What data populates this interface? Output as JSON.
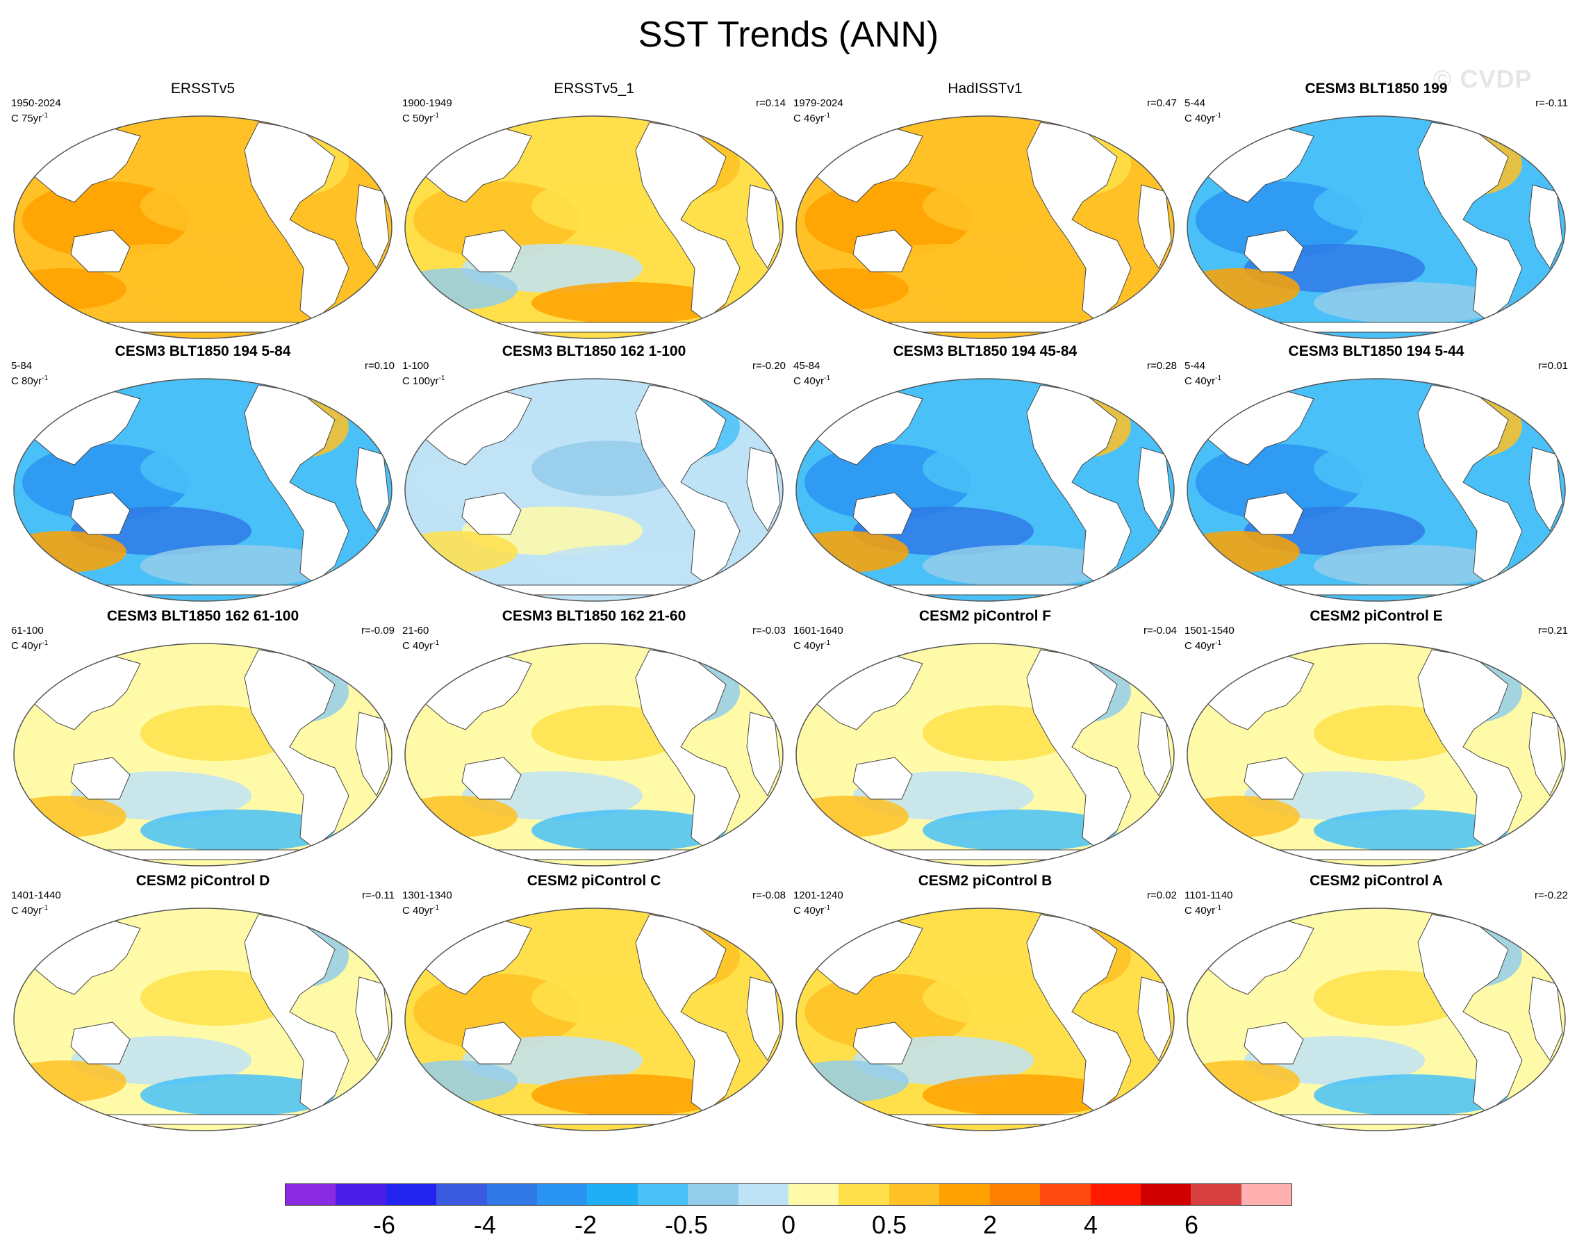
{
  "title": "SST Trends (ANN)",
  "watermark": "© CVDP",
  "panels": [
    {
      "title": "ERSSTv5",
      "period": "1950-2024",
      "units": "C 75yr",
      "r": "",
      "bold": false,
      "scheme": "warm"
    },
    {
      "title": "ERSSTv5_1",
      "period": "1900-1949",
      "units": "C 50yr",
      "r": "r=0.14",
      "bold": false,
      "scheme": "warmmix"
    },
    {
      "title": "HadISSTv1",
      "period": "1979-2024",
      "units": "C 46yr",
      "r": "r=0.47",
      "bold": false,
      "scheme": "warm"
    },
    {
      "title": "CESM3 BLT1850 199",
      "period": "5-44",
      "units": "C 40yr",
      "r": "r=-0.11",
      "bold": true,
      "scheme": "cool"
    },
    {
      "title": "CESM3 BLT1850 194 5-84",
      "period": "5-84",
      "units": "C 80yr",
      "r": "r=0.10",
      "bold": true,
      "scheme": "cool"
    },
    {
      "title": "CESM3 BLT1850 162 1-100",
      "period": "1-100",
      "units": "C 100yr",
      "r": "r=-0.20",
      "bold": true,
      "scheme": "coolmix"
    },
    {
      "title": "CESM3 BLT1850 194 45-84",
      "period": "45-84",
      "units": "C 40yr",
      "r": "r=0.28",
      "bold": true,
      "scheme": "cool"
    },
    {
      "title": "CESM3 BLT1850 194 5-44",
      "period": "5-44",
      "units": "C 40yr",
      "r": "r=0.01",
      "bold": true,
      "scheme": "cool"
    },
    {
      "title": "CESM3 BLT1850 162 61-100",
      "period": "61-100",
      "units": "C 40yr",
      "r": "r=-0.09",
      "bold": true,
      "scheme": "mix"
    },
    {
      "title": "CESM3 BLT1850 162 21-60",
      "period": "21-60",
      "units": "C 40yr",
      "r": "r=-0.03",
      "bold": true,
      "scheme": "mix"
    },
    {
      "title": "CESM2 piControl F",
      "period": "1601-1640",
      "units": "C 40yr",
      "r": "r=-0.04",
      "bold": true,
      "scheme": "mix"
    },
    {
      "title": "CESM2 piControl E",
      "period": "1501-1540",
      "units": "C 40yr",
      "r": "r=0.21",
      "bold": true,
      "scheme": "mix"
    },
    {
      "title": "CESM2 piControl D",
      "period": "1401-1440",
      "units": "C 40yr",
      "r": "r=-0.11",
      "bold": true,
      "scheme": "mix"
    },
    {
      "title": "CESM2 piControl C",
      "period": "1301-1340",
      "units": "C 40yr",
      "r": "r=-0.08",
      "bold": true,
      "scheme": "warmmix"
    },
    {
      "title": "CESM2 piControl B",
      "period": "1201-1240",
      "units": "C 40yr",
      "r": "r=0.02",
      "bold": true,
      "scheme": "warmmix"
    },
    {
      "title": "CESM2 piControl A",
      "period": "1101-1140",
      "units": "C 40yr",
      "r": "r=-0.22",
      "bold": true,
      "scheme": "mix"
    }
  ],
  "colorbar": {
    "colors": [
      "#8a2be2",
      "#4b1ee8",
      "#2323f0",
      "#3a5ae0",
      "#2f7ae6",
      "#2a94f2",
      "#1eaff5",
      "#49c1f8",
      "#94cdea",
      "#bfe3f6",
      "#fffaa8",
      "#ffe04a",
      "#ffc125",
      "#ffa100",
      "#ff7f00",
      "#ff4a10",
      "#ff1a00",
      "#d00000",
      "#d94040",
      "#ffb0b0"
    ],
    "tick_labels": [
      "-6",
      "-4",
      "-2",
      "-0.5",
      "0",
      "0.5",
      "2",
      "4",
      "6"
    ]
  }
}
